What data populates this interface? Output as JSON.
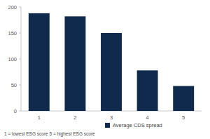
{
  "chart_data": {
    "type": "bar",
    "categories": [
      "1",
      "2",
      "3",
      "4",
      "5"
    ],
    "series": [
      {
        "name": "Average CDS spread",
        "color": "#0f2a4d",
        "values": [
          188,
          182,
          150,
          78,
          48
        ]
      }
    ],
    "ylim": [
      0,
      200
    ],
    "yticks": [
      0,
      50,
      100,
      150,
      200
    ],
    "grid": false,
    "legend": "bottom",
    "annotations": [
      "1 = lowest ESG score 5 = highest ESG score"
    ]
  }
}
